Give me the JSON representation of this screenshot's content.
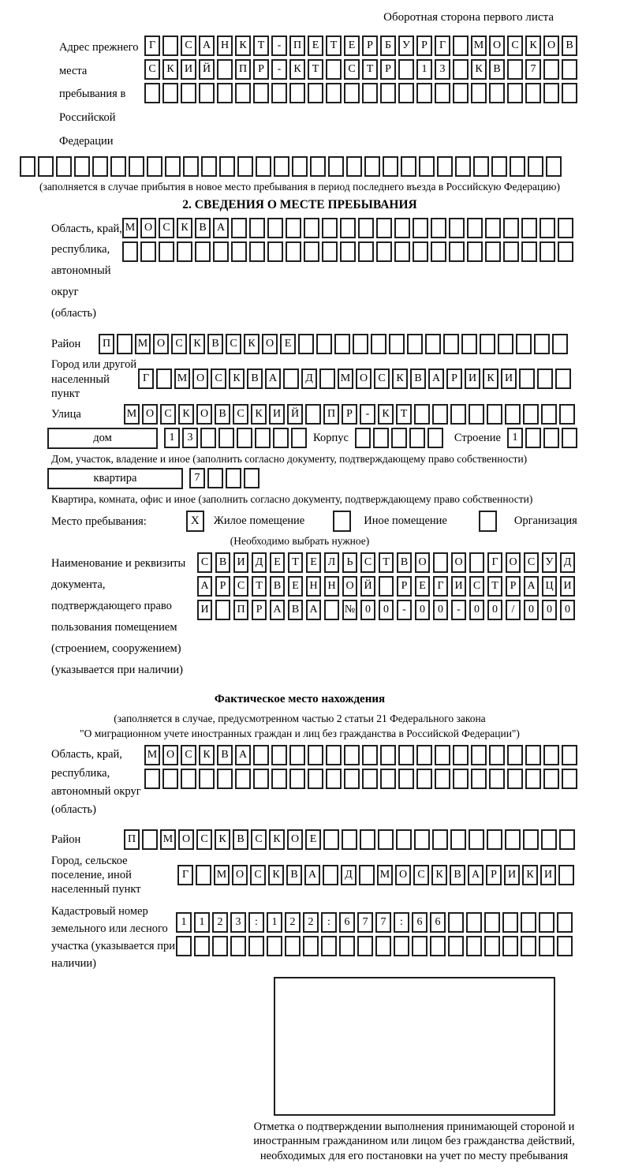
{
  "page": {
    "background": "#ffffff",
    "ink": "#000000",
    "border_color": "#1f1f1f"
  },
  "header": {
    "title": "Оборотная сторона первого листа"
  },
  "prev_address": {
    "label": "Адрес прежнего места пребывания в Российской Федерации",
    "row1": [
      "Г",
      "",
      "С",
      "А",
      "Н",
      "К",
      "Т",
      "-",
      "П",
      "Е",
      "Т",
      "Е",
      "Р",
      "Б",
      "У",
      "Р",
      "Г",
      "",
      "М",
      "О",
      "С",
      "К",
      "О",
      "В"
    ],
    "row2": [
      "С",
      "К",
      "И",
      "Й",
      "",
      "П",
      "Р",
      "-",
      "К",
      "Т",
      "",
      "С",
      "Т",
      "Р",
      "",
      "1",
      "3",
      "",
      "К",
      "В",
      "",
      "7",
      "",
      ""
    ],
    "row3": [
      "",
      "",
      "",
      "",
      "",
      "",
      "",
      "",
      "",
      "",
      "",
      "",
      "",
      "",
      "",
      "",
      "",
      "",
      "",
      "",
      "",
      "",
      "",
      ""
    ],
    "row4": [
      "",
      "",
      "",
      "",
      "",
      "",
      "",
      "",
      "",
      "",
      "",
      "",
      "",
      "",
      "",
      "",
      "",
      "",
      "",
      "",
      "",
      "",
      "",
      "",
      "",
      "",
      "",
      "",
      "",
      ""
    ],
    "caption": "(заполняется в случае прибытия в новое место пребывания в период последнего въезда в Российскую Федерацию)"
  },
  "section2": {
    "title": "2. СВЕДЕНИЯ О МЕСТЕ ПРЕБЫВАНИЯ",
    "oblast": {
      "label": "Область, край, республика, автономный округ (область)",
      "row1": [
        "М",
        "О",
        "С",
        "К",
        "В",
        "А",
        "",
        "",
        "",
        "",
        "",
        "",
        "",
        "",
        "",
        "",
        "",
        "",
        "",
        "",
        "",
        "",
        "",
        "",
        ""
      ],
      "row2": [
        "",
        "",
        "",
        "",
        "",
        "",
        "",
        "",
        "",
        "",
        "",
        "",
        "",
        "",
        "",
        "",
        "",
        "",
        "",
        "",
        "",
        "",
        "",
        "",
        ""
      ]
    },
    "rayon": {
      "label": "Район",
      "row": [
        "П",
        "",
        "М",
        "О",
        "С",
        "К",
        "В",
        "С",
        "К",
        "О",
        "Е",
        "",
        "",
        "",
        "",
        "",
        "",
        "",
        "",
        "",
        "",
        "",
        "",
        "",
        "",
        ""
      ]
    },
    "gorod": {
      "label": "Город или другой населенный пункт",
      "row": [
        "Г",
        "",
        "М",
        "О",
        "С",
        "К",
        "В",
        "А",
        "",
        "Д",
        "",
        "М",
        "О",
        "С",
        "К",
        "В",
        "А",
        "Р",
        "И",
        "К",
        "И",
        "",
        "",
        ""
      ]
    },
    "ulitsa": {
      "label": "Улица",
      "row": [
        "М",
        "О",
        "С",
        "К",
        "О",
        "В",
        "С",
        "К",
        "И",
        "Й",
        "",
        "П",
        "Р",
        "-",
        "К",
        "Т",
        "",
        "",
        "",
        "",
        "",
        "",
        "",
        "",
        ""
      ]
    },
    "dom": {
      "box_label": "дом",
      "cells": [
        "1",
        "3",
        "",
        "",
        "",
        "",
        "",
        ""
      ],
      "korpus_label": "Корпус",
      "korpus_cells": [
        "",
        "",
        "",
        "",
        ""
      ],
      "stroenie_label": "Строение",
      "stroenie_cells": [
        "1",
        "",
        "",
        ""
      ],
      "caption": "Дом, участок, владение и иное (заполнить согласно документу, подтверждающему право собственности)"
    },
    "kvartira": {
      "box_label": "квартира",
      "cells": [
        "7",
        "",
        "",
        ""
      ],
      "caption": "Квартира, комната, офис и иное (заполнить согласно документу, подтверждающему право собственности)"
    },
    "mesto": {
      "label": "Место пребывания:",
      "mark": "X",
      "option1": "Жилое помещение",
      "option2": "Иное помещение",
      "option3": "Организация",
      "note": "(Необходимо выбрать нужное)"
    },
    "doc": {
      "label": "Наименование и реквизиты документа, подтверждающего право пользования помещением (строением, сооружением) (указывается при наличии)",
      "row1": [
        "С",
        "В",
        "И",
        "Д",
        "Е",
        "Т",
        "Е",
        "Л",
        "Ь",
        "С",
        "Т",
        "В",
        "О",
        "",
        "О",
        "",
        "Г",
        "О",
        "С",
        "У",
        "Д"
      ],
      "row2": [
        "А",
        "Р",
        "С",
        "Т",
        "В",
        "Е",
        "Н",
        "Н",
        "О",
        "Й",
        "",
        "Р",
        "Е",
        "Г",
        "И",
        "С",
        "Т",
        "Р",
        "А",
        "Ц",
        "И"
      ],
      "row3": [
        "И",
        "",
        "П",
        "Р",
        "А",
        "В",
        "А",
        "",
        "№",
        "0",
        "0",
        "-",
        "0",
        "0",
        "-",
        "0",
        "0",
        "/",
        "0",
        "0",
        "0"
      ]
    }
  },
  "section3": {
    "title": "Фактическое место нахождения",
    "caption1": "(заполняется в случае, предусмотренном частью 2 статьи 21 Федерального закона",
    "caption2": "\"О миграционном учете иностранных граждан и лиц без гражданства в Российской Федерации\")",
    "oblast": {
      "label": "Область, край, республика, автономный округ (область)",
      "row1": [
        "М",
        "О",
        "С",
        "К",
        "В",
        "А",
        "",
        "",
        "",
        "",
        "",
        "",
        "",
        "",
        "",
        "",
        "",
        "",
        "",
        "",
        "",
        "",
        "",
        ""
      ],
      "row2": [
        "",
        "",
        "",
        "",
        "",
        "",
        "",
        "",
        "",
        "",
        "",
        "",
        "",
        "",
        "",
        "",
        "",
        "",
        "",
        "",
        "",
        "",
        "",
        ""
      ]
    },
    "rayon": {
      "label": "Район",
      "row": [
        "П",
        "",
        "М",
        "О",
        "С",
        "К",
        "В",
        "С",
        "К",
        "О",
        "Е",
        "",
        "",
        "",
        "",
        "",
        "",
        "",
        "",
        "",
        "",
        "",
        "",
        "",
        ""
      ]
    },
    "gorod": {
      "label": "Город, сельское поселение, иной населенный пункт",
      "row": [
        "Г",
        "",
        "М",
        "О",
        "С",
        "К",
        "В",
        "А",
        "",
        "Д",
        "",
        "М",
        "О",
        "С",
        "К",
        "В",
        "А",
        "Р",
        "И",
        "К",
        "И",
        ""
      ]
    },
    "kadastr": {
      "label": "Кадастровый номер земельного или лесного участка (указывается при наличии)",
      "row1": [
        "1",
        "1",
        "2",
        "3",
        ":",
        "1",
        "2",
        "2",
        ":",
        "6",
        "7",
        "7",
        ":",
        "6",
        "6",
        "",
        "",
        "",
        "",
        "",
        "",
        ""
      ],
      "row2": [
        "",
        "",
        "",
        "",
        "",
        "",
        "",
        "",
        "",
        "",
        "",
        "",
        "",
        "",
        "",
        "",
        "",
        "",
        "",
        "",
        "",
        ""
      ]
    },
    "stamp_caption": "Отметка о подтверждении выполнения принимающей стороной и иностранным гражданином или лицом без гражданства действий, необходимых для его постановки на учет по месту пребывания"
  }
}
